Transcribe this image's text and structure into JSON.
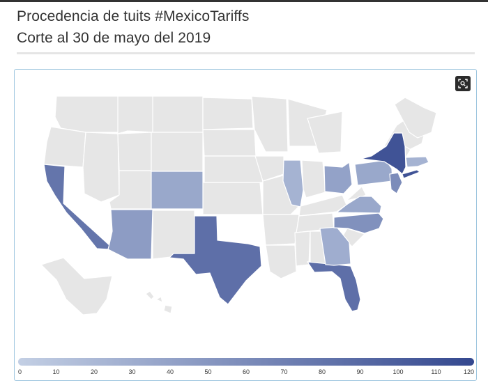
{
  "title": {
    "line1": "Procedencia de tuits #MexicoTariffs",
    "line2": "Corte al 30 de mayo del 2019"
  },
  "map": {
    "region": "United States",
    "base_color": "#e6e6e6",
    "border_color": "#ffffff",
    "scale": {
      "min": 0,
      "max": 120,
      "color_low": "#c3cfe4",
      "color_high": "#34488f"
    },
    "states": [
      {
        "name": "California",
        "value": 80
      },
      {
        "name": "Arizona",
        "value": 45
      },
      {
        "name": "Colorado",
        "value": 35
      },
      {
        "name": "Texas",
        "value": 85
      },
      {
        "name": "Florida",
        "value": 85
      },
      {
        "name": "Georgia",
        "value": 30
      },
      {
        "name": "North Carolina",
        "value": 55
      },
      {
        "name": "Virginia",
        "value": 35
      },
      {
        "name": "Illinois",
        "value": 25
      },
      {
        "name": "Ohio",
        "value": 40
      },
      {
        "name": "Pennsylvania",
        "value": 35
      },
      {
        "name": "New Jersey",
        "value": 60
      },
      {
        "name": "New York",
        "value": 110
      },
      {
        "name": "Massachusetts",
        "value": 25
      }
    ]
  },
  "legend": {
    "ticks": [
      "0",
      "10",
      "20",
      "30",
      "40",
      "50",
      "60",
      "70",
      "80",
      "90",
      "100",
      "110",
      "120"
    ]
  },
  "toolbar": {
    "zoom_icon": "zoom-fit-icon"
  }
}
